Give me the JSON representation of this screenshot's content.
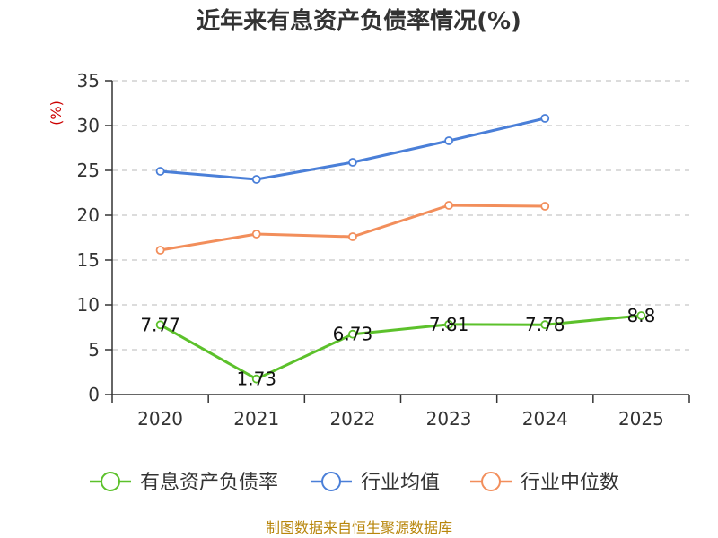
{
  "chart_data": {
    "type": "line",
    "title": "近年来有息资产负债率情况(%)",
    "ylabel": "(%)",
    "xlabel": "",
    "categories": [
      "2020",
      "2021",
      "2022",
      "2023",
      "2024",
      "2025"
    ],
    "ylim": [
      0,
      35
    ],
    "yticks": [
      0,
      5,
      10,
      15,
      20,
      25,
      30,
      35
    ],
    "grid": true,
    "legend_position": "bottom",
    "series": [
      {
        "name": "有息资产负债率",
        "color": "#5cc12b",
        "values": [
          7.77,
          1.73,
          6.73,
          7.81,
          7.78,
          8.8
        ],
        "labels": [
          "7.77",
          "1.73",
          "6.73",
          "7.81",
          "7.78",
          "8.8"
        ]
      },
      {
        "name": "行业均值",
        "color": "#4a7fd8",
        "values": [
          24.9,
          24.0,
          25.9,
          28.3,
          30.8,
          null
        ]
      },
      {
        "name": "行业中位数",
        "color": "#f28e5b",
        "values": [
          16.1,
          17.9,
          17.6,
          21.1,
          21.0,
          null
        ]
      }
    ]
  },
  "source": "制图数据来自恒生聚源数据库"
}
